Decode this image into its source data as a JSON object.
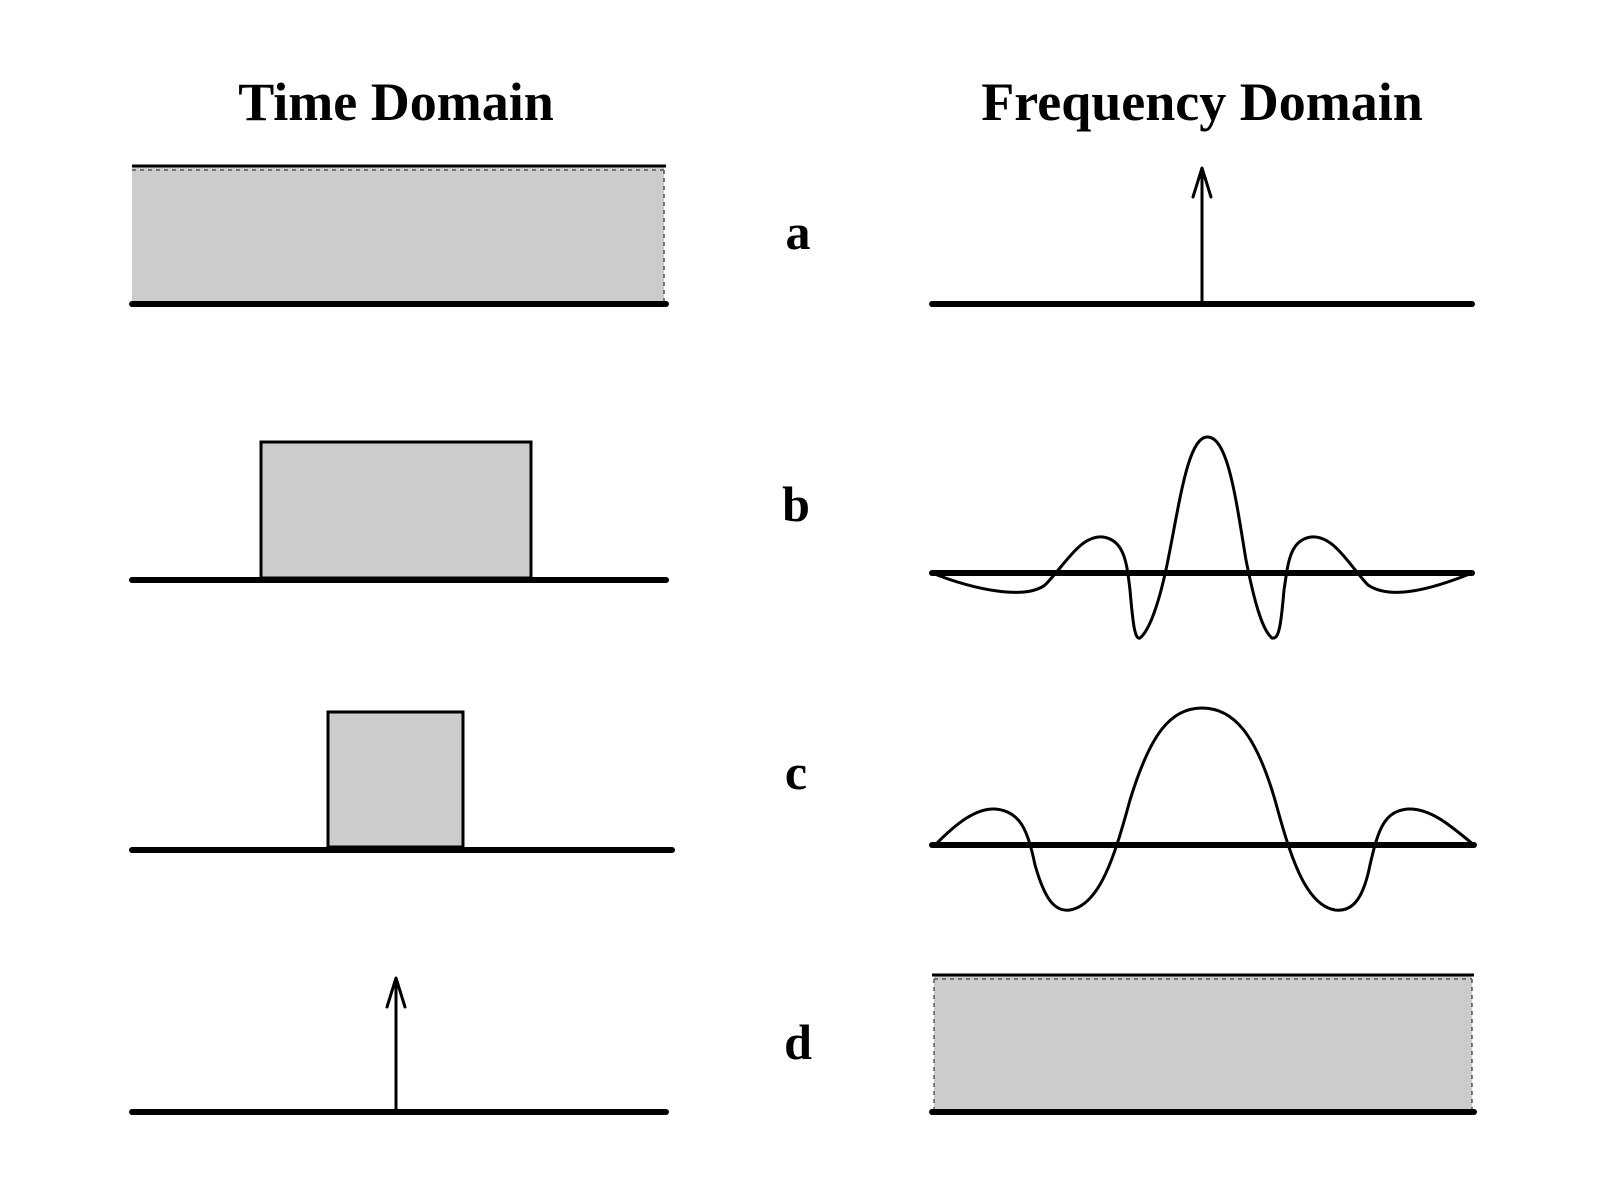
{
  "headings": {
    "left": "Time Domain",
    "right": "Frequency Domain"
  },
  "rows": [
    {
      "label": "a",
      "time": "constant",
      "frequency": "impulse"
    },
    {
      "label": "b",
      "time": "wide pulse",
      "frequency": "narrow sinc"
    },
    {
      "label": "c",
      "time": "narrow pulse",
      "frequency": "wide sinc"
    },
    {
      "label": "d",
      "time": "impulse",
      "frequency": "constant"
    }
  ],
  "colors": {
    "fill": "#cccccc",
    "ink": "#000000"
  }
}
